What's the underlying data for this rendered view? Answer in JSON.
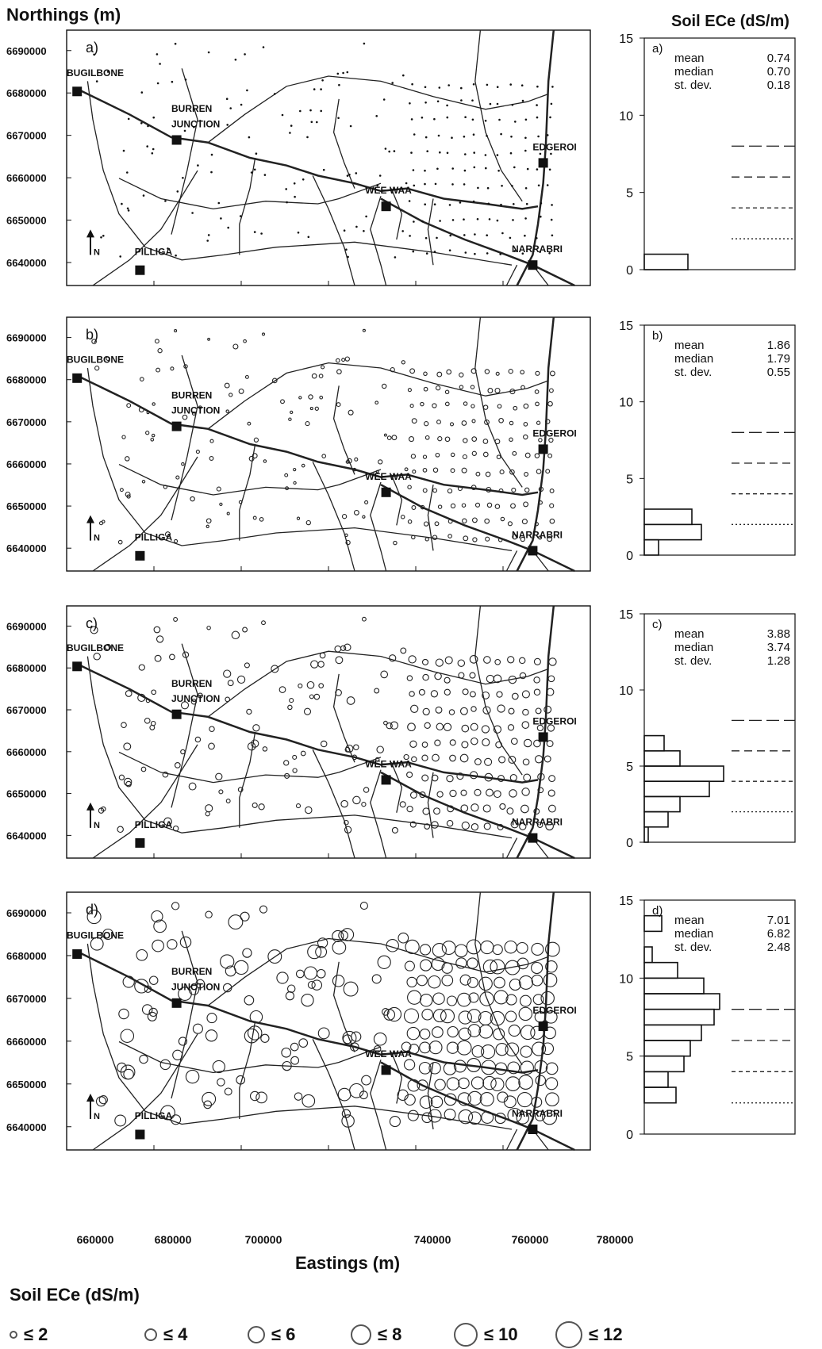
{
  "titles": {
    "northings": "Northings (m)",
    "soil_ece_top": "Soil ECe (dS/m)",
    "eastings": "Eastings (m)",
    "legend_title": "Soil ECe (dS/m)"
  },
  "map": {
    "north_label": "N",
    "y_ticks": [
      "6690000",
      "6680000",
      "6670000",
      "6660000",
      "6650000",
      "6640000"
    ],
    "x_ticks": [
      "660000",
      "680000",
      "700000",
      "740000",
      "760000",
      "780000"
    ],
    "towns": [
      "BUGILBONE",
      "BURREN JUNCTION",
      "EDGEROI",
      "WEE WAA",
      "NARRABRI",
      "PILLIGA"
    ]
  },
  "legend": [
    {
      "label": "≤ 2",
      "max": 2
    },
    {
      "label": "≤ 4",
      "max": 4
    },
    {
      "label": "≤ 6",
      "max": 6
    },
    {
      "label": "≤ 8",
      "max": 8
    },
    {
      "label": "≤ 10",
      "max": 10
    },
    {
      "label": "≤ 12",
      "max": 12
    }
  ],
  "chart_data": [
    {
      "type": "scatter",
      "panel": "a)",
      "xlabel": "Eastings (m)",
      "ylabel": "Northings (m)",
      "x_ticks": [
        660000,
        680000,
        700000,
        740000,
        760000,
        780000
      ],
      "y_ticks": [
        6640000,
        6650000,
        6660000,
        6670000,
        6680000,
        6690000
      ],
      "symbol_scale": "Soil ECe (dS/m)"
    },
    {
      "type": "bar",
      "panel": "a)",
      "orientation": "horizontal",
      "ylabel": "Soil ECe (dS/m)",
      "ylim": [
        0,
        15
      ],
      "y_ticks": [
        0,
        5,
        10,
        15
      ],
      "stats": {
        "mean_label": "mean",
        "mean": "0.74",
        "median_label": "median",
        "median": "0.70",
        "sd_label": "st. dev.",
        "sd": "0.18"
      },
      "bins": [
        [
          0,
          1,
          0.55
        ]
      ],
      "ref_lines": [
        2,
        4,
        6,
        8
      ]
    },
    {
      "type": "bar",
      "panel": "b)",
      "orientation": "horizontal",
      "ylabel": "Soil ECe (dS/m)",
      "ylim": [
        0,
        15
      ],
      "y_ticks": [
        0,
        5,
        10,
        15
      ],
      "stats": {
        "mean_label": "mean",
        "mean": "1.86",
        "median_label": "median",
        "median": "1.79",
        "sd_label": "st. dev.",
        "sd": "0.55"
      },
      "bins": [
        [
          0,
          1,
          0.18
        ],
        [
          1,
          2,
          0.72
        ],
        [
          2,
          3,
          0.6
        ]
      ],
      "ref_lines": [
        2,
        4,
        6,
        8
      ]
    },
    {
      "type": "bar",
      "panel": "c)",
      "orientation": "horizontal",
      "ylabel": "Soil ECe (dS/m)",
      "ylim": [
        0,
        15
      ],
      "y_ticks": [
        0,
        5,
        10,
        15
      ],
      "stats": {
        "mean_label": "mean",
        "mean": "3.88",
        "median_label": "median",
        "median": "3.74",
        "sd_label": "st. dev.",
        "sd": "1.28"
      },
      "bins": [
        [
          0,
          1,
          0.05
        ],
        [
          1,
          2,
          0.3
        ],
        [
          2,
          3,
          0.45
        ],
        [
          3,
          4,
          0.82
        ],
        [
          4,
          5,
          1.0
        ],
        [
          5,
          6,
          0.45
        ],
        [
          6,
          7,
          0.25
        ]
      ],
      "ref_lines": [
        2,
        4,
        6,
        8
      ]
    },
    {
      "type": "bar",
      "panel": "d)",
      "orientation": "horizontal",
      "ylabel": "Soil ECe (dS/m)",
      "ylim": [
        0,
        15
      ],
      "y_ticks": [
        0,
        5,
        10,
        15
      ],
      "stats": {
        "mean_label": "mean",
        "mean": "7.01",
        "median_label": "median",
        "median": "6.82",
        "sd_label": "st. dev.",
        "sd": "2.48"
      },
      "bins": [
        [
          2,
          3,
          0.4
        ],
        [
          3,
          4,
          0.3
        ],
        [
          4,
          5,
          0.5
        ],
        [
          5,
          6,
          0.58
        ],
        [
          6,
          7,
          0.72
        ],
        [
          7,
          8,
          0.88
        ],
        [
          8,
          9,
          0.95
        ],
        [
          9,
          10,
          0.75
        ],
        [
          10,
          11,
          0.42
        ],
        [
          11,
          12,
          0.1
        ],
        [
          13,
          14,
          0.22
        ]
      ],
      "ref_lines": [
        2,
        4,
        6,
        8
      ]
    }
  ]
}
